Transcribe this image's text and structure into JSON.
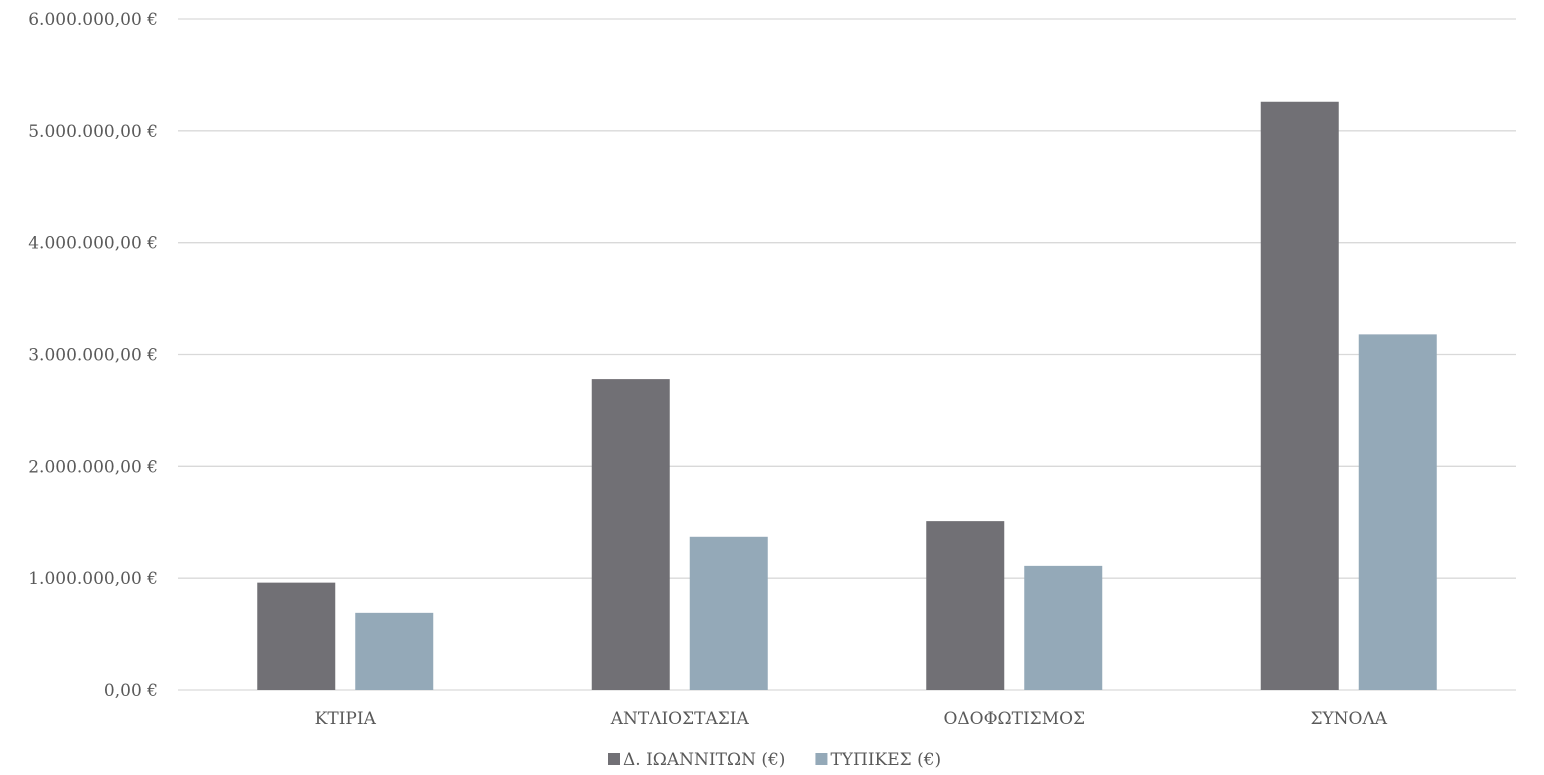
{
  "chart_data": {
    "type": "bar",
    "title": "",
    "xlabel": "",
    "ylabel": "",
    "categories": [
      "ΚΤΙΡΙΑ",
      "ΑΝΤΛΙΟΣΤΑΣΙΑ",
      "ΟΔΟΦΩΤΙΣΜΟΣ",
      "ΣΥΝΟΛΑ"
    ],
    "series": [
      {
        "name": "Δ. ΙΩΑΝΝΙΤΩΝ (€)",
        "color": "#717075",
        "values": [
          960000,
          2780000,
          1510000,
          5260000
        ]
      },
      {
        "name": "ΤΥΠΙΚΕΣ (€)",
        "color": "#94a9b8",
        "values": [
          690000,
          1370000,
          1110000,
          3180000
        ]
      }
    ],
    "ylim": [
      0,
      6000000
    ],
    "yticks": [
      0,
      1000000,
      2000000,
      3000000,
      4000000,
      5000000,
      6000000
    ],
    "ytick_labels": [
      "0,00 €",
      "1.000.000,00 €",
      "2.000.000,00 €",
      "3.000.000,00 €",
      "4.000.000,00 €",
      "5.000.000,00 €",
      "6.000.000,00 €"
    ],
    "grid": true,
    "legend_position": "bottom"
  }
}
